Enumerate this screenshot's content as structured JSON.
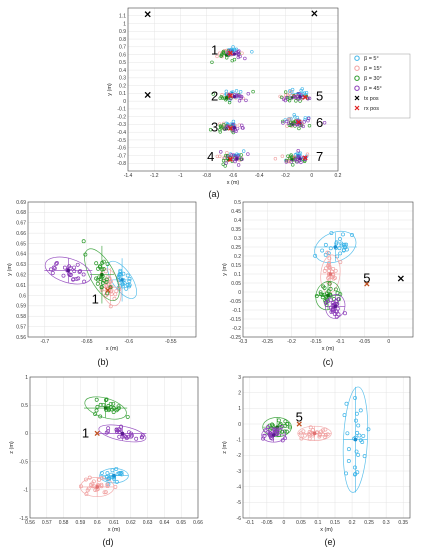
{
  "chart_data": [
    {
      "id": "a",
      "type": "scatter",
      "caption": "(a)",
      "xlabel": "x (m)",
      "ylabel": "y (m)",
      "xlim": [
        -1.4,
        0.2
      ],
      "ylim": [
        -0.9,
        1.2
      ],
      "xticks": [
        "-1.4",
        "-1.2",
        "-1",
        "-0.8",
        "-0.6",
        "-0.4",
        "-0.2",
        "0",
        "0.2"
      ],
      "yticks": [
        "-0.8",
        "-0.7",
        "-0.6",
        "-0.5",
        "-0.4",
        "-0.3",
        "-0.2",
        "-0.1",
        "0",
        "0.1",
        "0.2",
        "0.3",
        "0.4",
        "0.5",
        "0.6",
        "0.7",
        "0.8",
        "0.9",
        "1",
        "1.1"
      ],
      "legend": {
        "position": "right",
        "entries": [
          {
            "label": "β = 5°",
            "color": "#3fb5e8",
            "marker": "circle"
          },
          {
            "label": "β = 15°",
            "color": "#f0a0a0",
            "marker": "circle"
          },
          {
            "label": "β = 30°",
            "color": "#2a9a2a",
            "marker": "circle"
          },
          {
            "label": "β = 45°",
            "color": "#8a3ab8",
            "marker": "circle"
          },
          {
            "label": "tx pos",
            "color": "#000000",
            "marker": "x"
          },
          {
            "label": "rx pos",
            "color": "#e02020",
            "marker": "x"
          }
        ]
      },
      "tx_positions": [
        [
          -1.25,
          1.12
        ],
        [
          0.02,
          1.13
        ],
        [
          -1.25,
          0.08
        ]
      ],
      "rx_positions": [
        [
          -0.62,
          0.62
        ],
        [
          -0.62,
          0.07
        ],
        [
          -0.62,
          -0.35
        ],
        [
          -0.62,
          -0.75
        ],
        [
          -0.05,
          0.05
        ],
        [
          -0.1,
          -0.27
        ],
        [
          -0.05,
          -0.73
        ]
      ],
      "clusters": [
        {
          "label": "1",
          "x": -0.62,
          "y": 0.62
        },
        {
          "label": "2",
          "x": -0.62,
          "y": 0.07
        },
        {
          "label": "3",
          "x": -0.62,
          "y": -0.33
        },
        {
          "label": "4",
          "x": -0.6,
          "y": -0.73
        },
        {
          "label": "5",
          "x": -0.12,
          "y": 0.07
        },
        {
          "label": "6",
          "x": -0.12,
          "y": -0.27
        },
        {
          "label": "7",
          "x": -0.12,
          "y": -0.73
        }
      ]
    },
    {
      "id": "b",
      "type": "scatter",
      "caption": "(b)",
      "xlabel": "x (m)",
      "ylabel": "y (m)",
      "xlim": [
        -0.72,
        -0.52
      ],
      "ylim": [
        0.56,
        0.69
      ],
      "xticks": [
        "-0.7",
        "-0.65",
        "-0.6",
        "-0.55"
      ],
      "yticks": [
        "0.56",
        "0.57",
        "0.58",
        "0.59",
        "0.6",
        "0.61",
        "0.62",
        "0.63",
        "0.64",
        "0.65",
        "0.66",
        "0.67",
        "0.68",
        "0.69"
      ],
      "label": "1",
      "rx": [
        -0.625,
        0.605
      ],
      "series": [
        {
          "name": "β = 5°",
          "center": [
            -0.608,
            0.615
          ]
        },
        {
          "name": "β = 15°",
          "center": [
            -0.622,
            0.608
          ]
        },
        {
          "name": "β = 30°",
          "center": [
            -0.632,
            0.62
          ]
        },
        {
          "name": "β = 45°",
          "center": [
            -0.672,
            0.624
          ]
        }
      ]
    },
    {
      "id": "c",
      "type": "scatter",
      "caption": "(c)",
      "xlabel": "x (m)",
      "ylabel": "y (m)",
      "xlim": [
        -0.3,
        0.05
      ],
      "ylim": [
        -0.25,
        0.5
      ],
      "xticks": [
        "-0.3",
        "-0.25",
        "-0.2",
        "-0.15",
        "-0.1",
        "-0.05",
        "0"
      ],
      "yticks": [
        "-0.25",
        "-0.2",
        "-0.15",
        "-0.1",
        "-0.05",
        "0",
        "0.05",
        "0.1",
        "0.15",
        "0.2",
        "0.25",
        "0.3",
        "0.35",
        "0.4",
        "0.45",
        "0.5"
      ],
      "label": "5",
      "rx": [
        -0.045,
        0.045
      ],
      "tx": [
        0.025,
        0.075
      ],
      "series": [
        {
          "name": "β = 5°",
          "center": [
            -0.11,
            0.25
          ]
        },
        {
          "name": "β = 15°",
          "center": [
            -0.12,
            0.1
          ]
        },
        {
          "name": "β = 30°",
          "center": [
            -0.125,
            -0.02
          ]
        },
        {
          "name": "β = 45°",
          "center": [
            -0.11,
            -0.08
          ]
        }
      ]
    },
    {
      "id": "d",
      "type": "scatter",
      "caption": "(d)",
      "xlabel": "x (m)",
      "ylabel": "z (m)",
      "xlim": [
        0.56,
        0.66
      ],
      "ylim": [
        -1.5,
        1.0
      ],
      "xticks": [
        "0.56",
        "0.57",
        "0.58",
        "0.59",
        "0.6",
        "0.61",
        "0.62",
        "0.63",
        "0.64",
        "0.65",
        "0.66"
      ],
      "yticks": [
        "-1.5",
        "-1",
        "-0.5",
        "0",
        "0.5",
        "1"
      ],
      "label": "1",
      "rx": [
        0.6,
        0.0
      ],
      "series": [
        {
          "name": "β = 5°",
          "center": [
            0.61,
            -0.75
          ]
        },
        {
          "name": "β = 15°",
          "center": [
            0.6,
            -0.95
          ]
        },
        {
          "name": "β = 30°",
          "center": [
            0.605,
            0.45
          ]
        },
        {
          "name": "β = 45°",
          "center": [
            0.615,
            0.0
          ]
        }
      ]
    },
    {
      "id": "e",
      "type": "scatter",
      "caption": "(e)",
      "xlabel": "x (m)",
      "ylabel": "z (m)",
      "xlim": [
        -0.12,
        0.37
      ],
      "ylim": [
        -6.0,
        3.0
      ],
      "xticks": [
        "-0.1",
        "-0.05",
        "0",
        "0.05",
        "0.1",
        "0.15",
        "0.2",
        "0.25",
        "0.3",
        "0.35"
      ],
      "yticks": [
        "-6",
        "-5",
        "-4",
        "-3",
        "-2",
        "-1",
        "0",
        "1",
        "2",
        "3"
      ],
      "label": "5",
      "rx": [
        0.045,
        0.0
      ],
      "series": [
        {
          "name": "β = 5°",
          "center": [
            0.21,
            -1.0
          ]
        },
        {
          "name": "β = 15°",
          "center": [
            0.09,
            -0.6
          ]
        },
        {
          "name": "β = 30°",
          "center": [
            -0.02,
            -0.2
          ]
        },
        {
          "name": "β = 45°",
          "center": [
            -0.03,
            -0.7
          ]
        }
      ]
    }
  ]
}
